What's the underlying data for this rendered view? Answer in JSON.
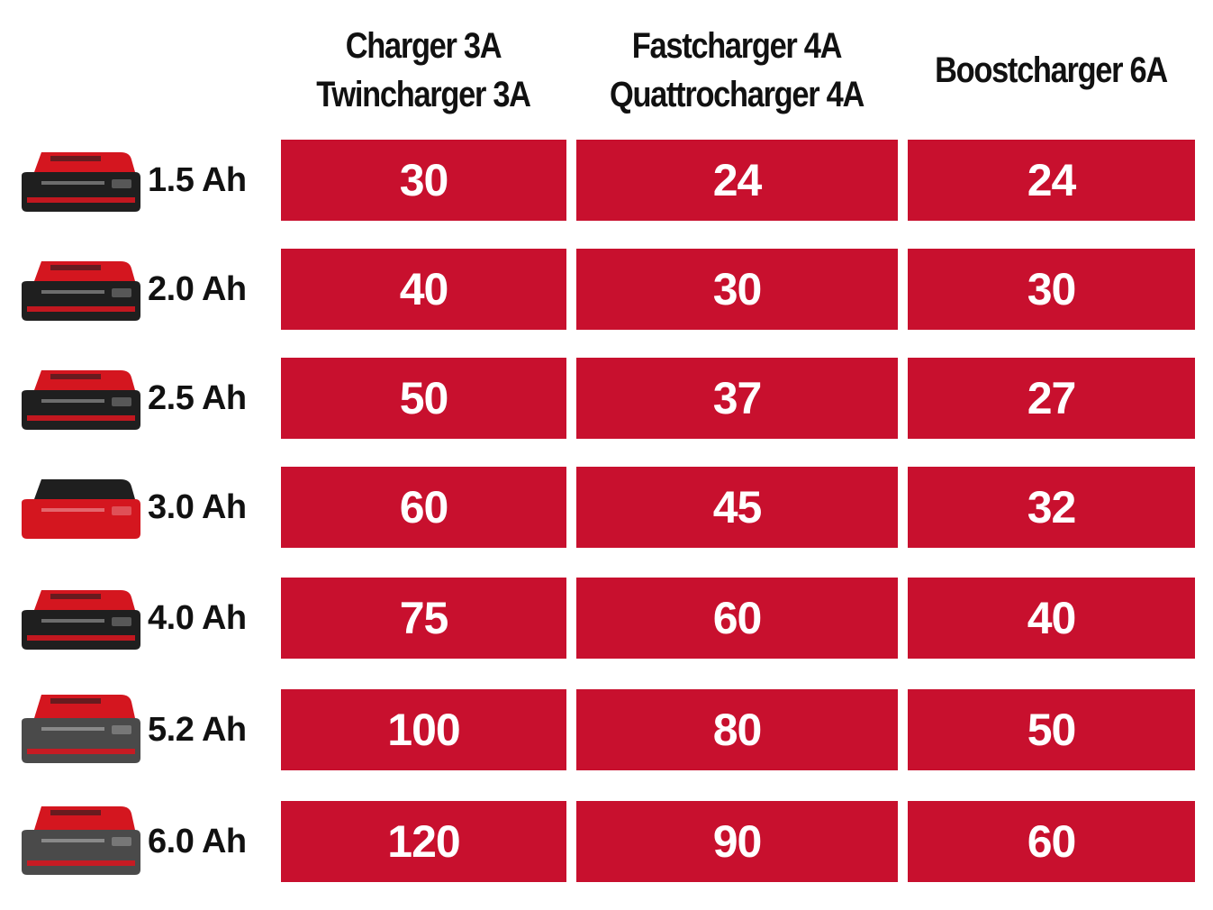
{
  "chart_data": {
    "type": "table",
    "columns": [
      {
        "lines": [
          "Charger 3A",
          "Twincharger 3A"
        ]
      },
      {
        "lines": [
          "Fastcharger 4A",
          "Quattrocharger 4A"
        ]
      },
      {
        "lines": [
          "Boostcharger 6A"
        ]
      }
    ],
    "rows": [
      {
        "label": "1.5 Ah",
        "values": [
          "30",
          "24",
          "24"
        ]
      },
      {
        "label": "2.0 Ah",
        "values": [
          "40",
          "30",
          "30"
        ]
      },
      {
        "label": "2.5 Ah",
        "values": [
          "50",
          "37",
          "27"
        ]
      },
      {
        "label": "3.0 Ah",
        "values": [
          "60",
          "45",
          "32"
        ]
      },
      {
        "label": "4.0 Ah",
        "values": [
          "75",
          "60",
          "40"
        ]
      },
      {
        "label": "5.2 Ah",
        "values": [
          "100",
          "80",
          "50"
        ]
      },
      {
        "label": "6.0 Ah",
        "values": [
          "120",
          "90",
          "60"
        ]
      }
    ]
  },
  "colors": {
    "cell_background": "#c8102e",
    "cell_text": "#ffffff",
    "battery_red": "#d4161f",
    "battery_black": "#1f1f1f",
    "battery_grey": "#4a4a4a"
  },
  "icons": {
    "battery": "battery-pack-icon"
  }
}
